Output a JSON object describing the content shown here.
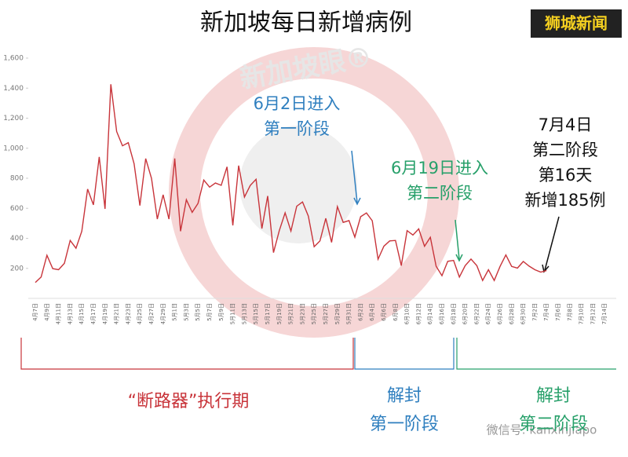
{
  "chart_data": {
    "type": "line",
    "title": "新加坡每日新增病例",
    "logo": "狮城新闻",
    "watermark": "新加坡眼®",
    "credit": "微信号: kanxinjiapo",
    "categories": [
      "4月7日",
      null,
      "4月9日",
      null,
      "4月11日",
      null,
      "4月13日",
      null,
      "4月15日",
      null,
      "4月17日",
      null,
      "4月19日",
      null,
      "4月21日",
      null,
      "4月23日",
      null,
      "4月25日",
      null,
      "4月27日",
      null,
      "4月29日",
      null,
      "5月1日",
      null,
      "5月3日",
      null,
      "5月5日",
      null,
      "5月7日",
      null,
      "5月9日",
      null,
      "5月11日",
      null,
      "5月13日",
      null,
      "5月15日",
      null,
      "5月17日",
      null,
      "5月19日",
      null,
      "5月21日",
      null,
      "5月23日",
      null,
      "5月25日",
      null,
      "5月27日",
      null,
      "5月29日",
      null,
      "5月31日",
      null,
      "6月2日",
      null,
      "6月4日",
      null,
      "6月6日",
      null,
      "6月8日",
      null,
      "6月10日",
      null,
      "6月12日",
      null,
      "6月14日",
      null,
      "6月16日",
      null,
      "6月18日",
      null,
      "6月20日",
      null,
      "6月22日",
      null,
      "6月24日",
      null,
      "6月26日",
      null,
      "6月28日",
      null,
      "6月30日",
      null,
      "7月2日",
      null,
      "7月4日",
      null,
      "7月6日",
      null,
      "7月8日",
      null,
      "7月10日",
      null,
      "7月12日",
      null,
      "7月14日"
    ],
    "series": [
      {
        "name": "每日新增病例",
        "color": "#c8343a",
        "values": [
          106,
          142,
          287,
          198,
          191,
          233,
          386,
          334,
          447,
          728,
          623,
          942,
          596,
          1426,
          1111,
          1016,
          1037,
          897,
          618,
          931,
          799,
          528,
          690,
          528,
          932,
          447,
          657,
          573,
          632,
          788,
          741,
          768,
          753,
          876,
          486,
          884,
          675,
          752,
          793,
          465,
          682,
          305,
          451,
          570,
          448,
          614,
          642,
          548,
          344,
          383,
          533,
          373,
          611,
          506,
          518,
          408,
          544,
          569,
          517,
          261,
          347,
          383,
          386,
          218,
          451,
          422,
          463,
          347,
          407,
          214,
          151,
          247,
          253,
          142,
          218,
          262,
          218,
          119,
          191,
          119,
          213,
          289,
          213,
          202,
          246,
          215,
          191,
          175,
          185,
          null,
          null,
          null,
          null,
          null,
          null,
          null,
          null,
          null,
          null
        ]
      }
    ],
    "ylim": [
      0,
      1600
    ],
    "yticks": [
      200,
      400,
      600,
      800,
      {
        "value": 1000,
        "label": "1,000"
      },
      {
        "value": 1200,
        "label": "1,200"
      },
      {
        "value": 1400,
        "label": "1,400"
      },
      {
        "value": 1600,
        "label": "1,600"
      }
    ],
    "grid": false,
    "annotations": [
      {
        "lines": [
          "6月2日进入",
          "第一阶段"
        ],
        "color": "#2f7fbf"
      },
      {
        "lines": [
          "6月19日进入",
          "第二阶段"
        ],
        "color": "#27a06a"
      },
      {
        "lines": [
          "7月4日",
          "第二阶段",
          "第16天",
          "新增185例"
        ],
        "color": "#111111"
      }
    ],
    "phases": [
      {
        "lines": [
          "“断路器”执行期"
        ],
        "color": "#c8343a"
      },
      {
        "lines": [
          "解封",
          "第一阶段"
        ],
        "color": "#2f7fbf"
      },
      {
        "lines": [
          "解封",
          "第二阶段"
        ],
        "color": "#27a06a"
      }
    ]
  }
}
